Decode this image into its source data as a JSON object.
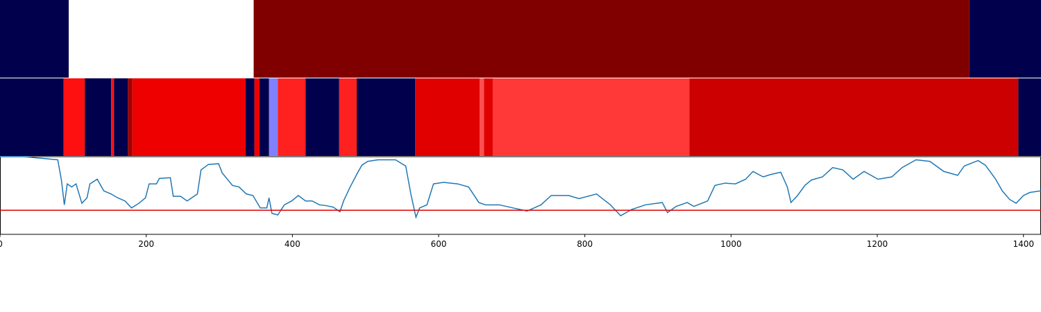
{
  "chart_data": [
    {
      "type": "segments",
      "xlim": [
        0,
        1424
      ],
      "edges": [
        0,
        94,
        347,
        1326,
        1424
      ],
      "colors": [
        "#00004c",
        "#ffffff",
        "#800000",
        "#00004c"
      ]
    },
    {
      "type": "segments",
      "xlim": [
        0,
        1424
      ],
      "edges": [
        0,
        87,
        116,
        152,
        156,
        175,
        181,
        336,
        348,
        355,
        368,
        380,
        418,
        464,
        488,
        568,
        656,
        662,
        674,
        943,
        1393,
        1424
      ],
      "colors": [
        "#00004c",
        "#ff1010",
        "#00004c",
        "#ff1010",
        "#00004c",
        "#a00000",
        "#ee0000",
        "#00004c",
        "#ee0000",
        "#00004c",
        "#8080ff",
        "#ff2020",
        "#00004c",
        "#ff2020",
        "#00004c",
        "#e00000",
        "#ff5050",
        "#e00000",
        "#ff3838",
        "#cc0000",
        "#00004c"
      ]
    },
    {
      "type": "line",
      "xlim": [
        0,
        1424
      ],
      "ylim": [
        0,
        1
      ],
      "xticks": [
        0,
        200,
        400,
        600,
        800,
        1000,
        1200,
        1400
      ],
      "threshold": {
        "value": 0.31,
        "color": "#e00000"
      },
      "series": [
        {
          "color": "#1f77b4",
          "x": [
            0,
            33,
            79,
            84,
            88,
            92,
            98,
            104,
            112,
            119,
            123,
            133,
            142,
            152,
            161,
            171,
            180,
            190,
            199,
            204,
            214,
            218,
            233,
            237,
            247,
            256,
            270,
            275,
            285,
            299,
            304,
            318,
            327,
            337,
            346,
            356,
            365,
            368,
            372,
            380,
            389,
            399,
            408,
            418,
            427,
            437,
            446,
            456,
            465,
            470,
            479,
            489,
            495,
            503,
            517,
            541,
            555,
            562,
            569,
            574,
            584,
            593,
            607,
            626,
            641,
            655,
            664,
            683,
            702,
            721,
            740,
            754,
            778,
            792,
            816,
            835,
            849,
            864,
            883,
            906,
            913,
            925,
            940,
            949,
            968,
            978,
            992,
            1006,
            1020,
            1030,
            1044,
            1054,
            1068,
            1077,
            1082,
            1091,
            1101,
            1110,
            1125,
            1139,
            1153,
            1167,
            1182,
            1201,
            1220,
            1234,
            1253,
            1272,
            1291,
            1310,
            1319,
            1338,
            1348,
            1362,
            1371,
            1381,
            1390,
            1400,
            1409,
            1424
          ],
          "values": [
            1.0,
            1.0,
            0.96,
            0.7,
            0.38,
            0.65,
            0.61,
            0.65,
            0.4,
            0.47,
            0.65,
            0.71,
            0.56,
            0.52,
            0.47,
            0.43,
            0.34,
            0.4,
            0.47,
            0.65,
            0.65,
            0.72,
            0.73,
            0.49,
            0.49,
            0.43,
            0.52,
            0.83,
            0.9,
            0.91,
            0.79,
            0.63,
            0.61,
            0.52,
            0.5,
            0.34,
            0.34,
            0.47,
            0.27,
            0.25,
            0.38,
            0.43,
            0.5,
            0.43,
            0.43,
            0.38,
            0.37,
            0.35,
            0.29,
            0.43,
            0.61,
            0.79,
            0.89,
            0.94,
            0.96,
            0.96,
            0.88,
            0.52,
            0.22,
            0.34,
            0.38,
            0.65,
            0.67,
            0.65,
            0.61,
            0.41,
            0.38,
            0.38,
            0.34,
            0.3,
            0.38,
            0.5,
            0.5,
            0.46,
            0.52,
            0.38,
            0.24,
            0.32,
            0.38,
            0.41,
            0.28,
            0.36,
            0.41,
            0.36,
            0.43,
            0.63,
            0.66,
            0.65,
            0.71,
            0.81,
            0.74,
            0.77,
            0.8,
            0.61,
            0.41,
            0.5,
            0.63,
            0.7,
            0.74,
            0.86,
            0.83,
            0.71,
            0.81,
            0.71,
            0.74,
            0.86,
            0.96,
            0.94,
            0.81,
            0.76,
            0.88,
            0.95,
            0.89,
            0.71,
            0.56,
            0.45,
            0.4,
            0.5,
            0.54,
            0.56
          ]
        }
      ]
    }
  ]
}
